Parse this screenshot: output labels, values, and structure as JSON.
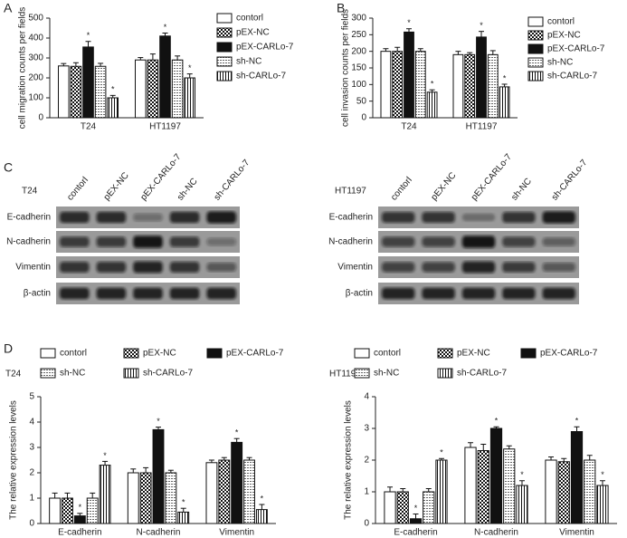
{
  "panel_labels": [
    "A",
    "B",
    "C",
    "D"
  ],
  "chart_data": [
    {
      "type": "bar",
      "ylabel": "cell migration counts per fields",
      "categories": [
        "T24",
        "HT1197"
      ],
      "ylim": [
        0,
        500
      ],
      "yticks": [
        0,
        100,
        200,
        300,
        400,
        500
      ],
      "series": [
        {
          "name": "contorl",
          "color": "#ffffff",
          "pattern": "none",
          "values": [
            260,
            290
          ],
          "errors": [
            12,
            12
          ]
        },
        {
          "name": "pEX-NC",
          "color": "#ffffff",
          "pattern": "checker",
          "values": [
            258,
            290
          ],
          "errors": [
            18,
            30
          ]
        },
        {
          "name": "pEX-CARLo-7",
          "color": "#111111",
          "pattern": "solid",
          "values": [
            355,
            410
          ],
          "errors": [
            28,
            15
          ],
          "annotations": [
            "*",
            "*"
          ]
        },
        {
          "name": "sh-NC",
          "color": "#ffffff",
          "pattern": "dots",
          "values": [
            258,
            290
          ],
          "errors": [
            15,
            20
          ]
        },
        {
          "name": "sh-CARLo-7",
          "color": "#ffffff",
          "pattern": "vstripe",
          "values": [
            100,
            200
          ],
          "errors": [
            12,
            20
          ],
          "annotations": [
            "*",
            "*"
          ]
        }
      ]
    },
    {
      "type": "bar",
      "ylabel": "cell invasion counts per fields",
      "categories": [
        "T24",
        "HT1197"
      ],
      "ylim": [
        0,
        300
      ],
      "yticks": [
        0,
        50,
        100,
        150,
        200,
        250,
        300
      ],
      "series": [
        {
          "name": "contorl",
          "color": "#ffffff",
          "pattern": "none",
          "values": [
            200,
            190
          ],
          "errors": [
            8,
            10
          ]
        },
        {
          "name": "pEX-NC",
          "color": "#ffffff",
          "pattern": "checker",
          "values": [
            200,
            190
          ],
          "errors": [
            12,
            6
          ]
        },
        {
          "name": "pEX-CARLo-7",
          "color": "#111111",
          "pattern": "solid",
          "values": [
            258,
            243
          ],
          "errors": [
            10,
            17
          ],
          "annotations": [
            "*",
            "*"
          ]
        },
        {
          "name": "sh-NC",
          "color": "#ffffff",
          "pattern": "dots",
          "values": [
            200,
            190
          ],
          "errors": [
            8,
            12
          ]
        },
        {
          "name": "sh-CARLo-7",
          "color": "#ffffff",
          "pattern": "vstripe",
          "values": [
            77,
            93
          ],
          "errors": [
            7,
            8
          ],
          "annotations": [
            "*",
            "*"
          ]
        }
      ]
    },
    {
      "type": "bar",
      "title": "T24",
      "ylabel": "The relative expression levels",
      "categories": [
        "E-cadherin",
        "N-cadherin",
        "Vimentin"
      ],
      "ylim": [
        0,
        5
      ],
      "yticks": [
        0,
        1,
        2,
        3,
        4,
        5
      ],
      "series": [
        {
          "name": "contorl",
          "color": "#ffffff",
          "pattern": "none",
          "values": [
            1,
            2,
            2.4
          ],
          "errors": [
            0.2,
            0.15,
            0.1
          ]
        },
        {
          "name": "pEX-NC",
          "color": "#ffffff",
          "pattern": "checker",
          "values": [
            1,
            2,
            2.5
          ],
          "errors": [
            0.2,
            0.2,
            0.1
          ]
        },
        {
          "name": "pEX-CARLo-7",
          "color": "#111111",
          "pattern": "solid",
          "values": [
            0.3,
            3.7,
            3.2
          ],
          "errors": [
            0.1,
            0.1,
            0.15
          ],
          "annotations": [
            "*",
            "*",
            "*"
          ]
        },
        {
          "name": "sh-NC",
          "color": "#ffffff",
          "pattern": "dots",
          "values": [
            1,
            2,
            2.5
          ],
          "errors": [
            0.2,
            0.1,
            0.1
          ]
        },
        {
          "name": "sh-CARLo-7",
          "color": "#ffffff",
          "pattern": "vstripe",
          "values": [
            2.3,
            0.45,
            0.55
          ],
          "errors": [
            0.15,
            0.15,
            0.2
          ],
          "annotations": [
            "*",
            "*",
            "*"
          ]
        }
      ]
    },
    {
      "type": "bar",
      "title": "HT1197",
      "ylabel": "The relative expression levels",
      "categories": [
        "E-cadherin",
        "N-cadherin",
        "Vimentin"
      ],
      "ylim": [
        0,
        4
      ],
      "yticks": [
        0,
        1,
        2,
        3,
        4
      ],
      "series": [
        {
          "name": "contorl",
          "color": "#ffffff",
          "pattern": "none",
          "values": [
            1,
            2.4,
            2
          ],
          "errors": [
            0.15,
            0.15,
            0.1
          ]
        },
        {
          "name": "pEX-NC",
          "color": "#ffffff",
          "pattern": "checker",
          "values": [
            1,
            2.3,
            1.95
          ],
          "errors": [
            0.1,
            0.2,
            0.1
          ]
        },
        {
          "name": "pEX-CARLo-7",
          "color": "#111111",
          "pattern": "solid",
          "values": [
            0.15,
            3,
            2.9
          ],
          "errors": [
            0.15,
            0.05,
            0.15
          ],
          "annotations": [
            "*",
            "*",
            "*"
          ]
        },
        {
          "name": "sh-NC",
          "color": "#ffffff",
          "pattern": "dots",
          "values": [
            1,
            2.35,
            2
          ],
          "errors": [
            0.1,
            0.1,
            0.15
          ]
        },
        {
          "name": "sh-CARLo-7",
          "color": "#ffffff",
          "pattern": "vstripe",
          "values": [
            2,
            1.2,
            1.2
          ],
          "errors": [
            0.05,
            0.15,
            0.15
          ],
          "annotations": [
            "*",
            "*",
            "*"
          ]
        }
      ]
    }
  ],
  "blots": [
    {
      "title": "T24",
      "lanes": [
        "contorl",
        "pEX-NC",
        "pEX-CARLo-7",
        "sh-NC",
        "sh-CARLo-7"
      ],
      "rows": [
        "E-cadherin",
        "N-cadherin",
        "Vimentin",
        "β-actin"
      ]
    },
    {
      "title": "HT1197",
      "lanes": [
        "contorl",
        "pEX-NC",
        "pEX-CARLo-7",
        "sh-NC",
        "sh-CARLo-7"
      ],
      "rows": [
        "E-cadherin",
        "N-cadherin",
        "Vimentin",
        "β-actin"
      ]
    }
  ]
}
